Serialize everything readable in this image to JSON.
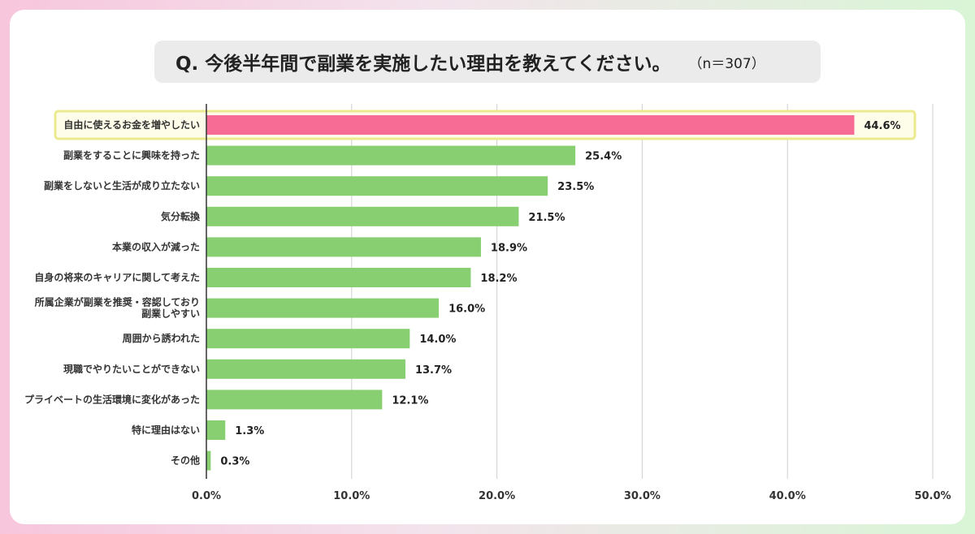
{
  "title": {
    "question": "Q. 今後半年間で副業を実施したい理由を教えてください。",
    "sample": "（n＝307）"
  },
  "colors": {
    "highlight_bar": "#f76c95",
    "bar": "#88cf72",
    "highlight_frame": "#ecea8f",
    "highlight_fill": "#fefde9"
  },
  "chart_data": {
    "type": "bar",
    "orientation": "horizontal",
    "categories": [
      [
        "自由に使えるお金を増やしたい"
      ],
      [
        "副業をすることに興味を持った"
      ],
      [
        "副業をしないと生活が成り立たない"
      ],
      [
        "気分転換"
      ],
      [
        "本業の収入が減った"
      ],
      [
        "自身の将来のキャリアに関して考えた"
      ],
      [
        "所属企業が副業を推奨・容認しており",
        "副業しやすい"
      ],
      [
        "周囲から誘われた"
      ],
      [
        "現職でやりたいことができない"
      ],
      [
        "プライベートの生活環境に変化があった"
      ],
      [
        "特に理由はない"
      ],
      [
        "その他"
      ]
    ],
    "values": [
      44.6,
      25.4,
      23.5,
      21.5,
      18.9,
      18.2,
      16.0,
      14.0,
      13.7,
      12.1,
      1.3,
      0.3
    ],
    "value_labels": [
      "44.6%",
      "25.4%",
      "23.5%",
      "21.5%",
      "18.9%",
      "18.2%",
      "16.0%",
      "14.0%",
      "13.7%",
      "12.1%",
      "1.3%",
      "0.3%"
    ],
    "highlight_index": 0,
    "xlim": [
      0,
      50
    ],
    "xticks": [
      0,
      10,
      20,
      30,
      40,
      50
    ],
    "xtick_labels": [
      "0.0%",
      "10.0%",
      "20.0%",
      "30.0%",
      "40.0%",
      "50.0%"
    ],
    "grid": true,
    "legend": "none"
  }
}
